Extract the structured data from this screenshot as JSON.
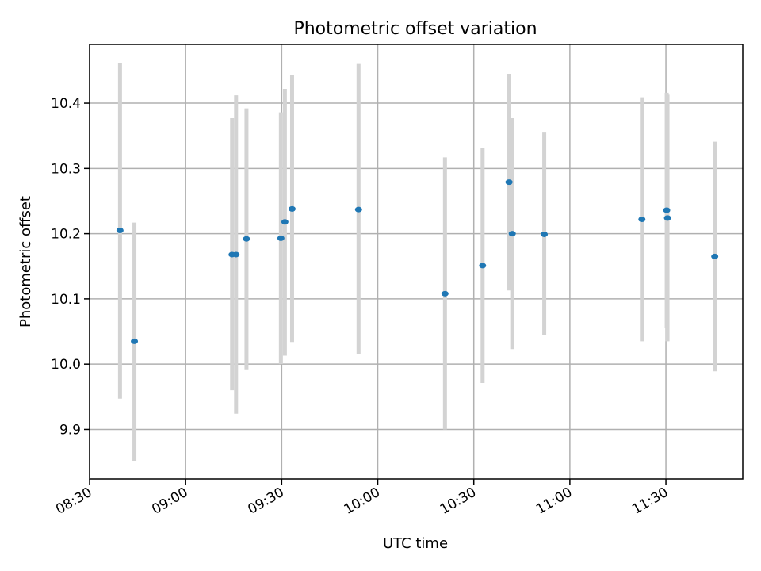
{
  "chart_data": {
    "type": "scatter",
    "title": "Photometric offset variation",
    "xlabel": "UTC time",
    "ylabel": "Photometric offset",
    "x_axis_type": "time",
    "xlim": [
      "08:30",
      "11:54"
    ],
    "ylim": [
      9.824,
      10.49
    ],
    "x_ticks": [
      "08:30",
      "09:00",
      "09:30",
      "10:00",
      "10:30",
      "11:00",
      "11:30"
    ],
    "y_ticks": [
      9.9,
      10.0,
      10.1,
      10.2,
      10.3,
      10.4
    ],
    "y_tick_labels": [
      "9.9",
      "10.0",
      "10.1",
      "10.2",
      "10.3",
      "10.4"
    ],
    "grid": true,
    "marker_color": "#1f77b4",
    "errorbar_color": "#d3d3d3",
    "points": [
      {
        "time": "08:39:30",
        "y": 10.205,
        "ylow": 9.947,
        "yhigh": 10.462
      },
      {
        "time": "08:44:00",
        "y": 10.035,
        "ylow": 9.852,
        "yhigh": 10.217
      },
      {
        "time": "09:14:30",
        "y": 10.168,
        "ylow": 9.96,
        "yhigh": 10.377
      },
      {
        "time": "09:15:45",
        "y": 10.168,
        "ylow": 9.924,
        "yhigh": 10.412
      },
      {
        "time": "09:19:00",
        "y": 10.192,
        "ylow": 9.992,
        "yhigh": 10.392
      },
      {
        "time": "09:29:45",
        "y": 10.193,
        "ylow": 10.0,
        "yhigh": 10.386
      },
      {
        "time": "09:31:00",
        "y": 10.218,
        "ylow": 10.013,
        "yhigh": 10.422
      },
      {
        "time": "09:33:15",
        "y": 10.238,
        "ylow": 10.034,
        "yhigh": 10.443
      },
      {
        "time": "09:54:00",
        "y": 10.237,
        "ylow": 10.015,
        "yhigh": 10.46
      },
      {
        "time": "10:21:00",
        "y": 10.108,
        "ylow": 9.9,
        "yhigh": 10.317
      },
      {
        "time": "10:32:45",
        "y": 10.151,
        "ylow": 9.971,
        "yhigh": 10.331
      },
      {
        "time": "10:41:00",
        "y": 10.279,
        "ylow": 10.113,
        "yhigh": 10.445
      },
      {
        "time": "10:42:00",
        "y": 10.2,
        "ylow": 10.023,
        "yhigh": 10.377
      },
      {
        "time": "10:52:00",
        "y": 10.199,
        "ylow": 10.044,
        "yhigh": 10.355
      },
      {
        "time": "11:22:30",
        "y": 10.222,
        "ylow": 10.035,
        "yhigh": 10.409
      },
      {
        "time": "11:30:15",
        "y": 10.236,
        "ylow": 10.056,
        "yhigh": 10.416
      },
      {
        "time": "11:30:30",
        "y": 10.224,
        "ylow": 10.035,
        "yhigh": 10.413
      },
      {
        "time": "11:45:15",
        "y": 10.165,
        "ylow": 9.989,
        "yhigh": 10.341
      }
    ]
  }
}
